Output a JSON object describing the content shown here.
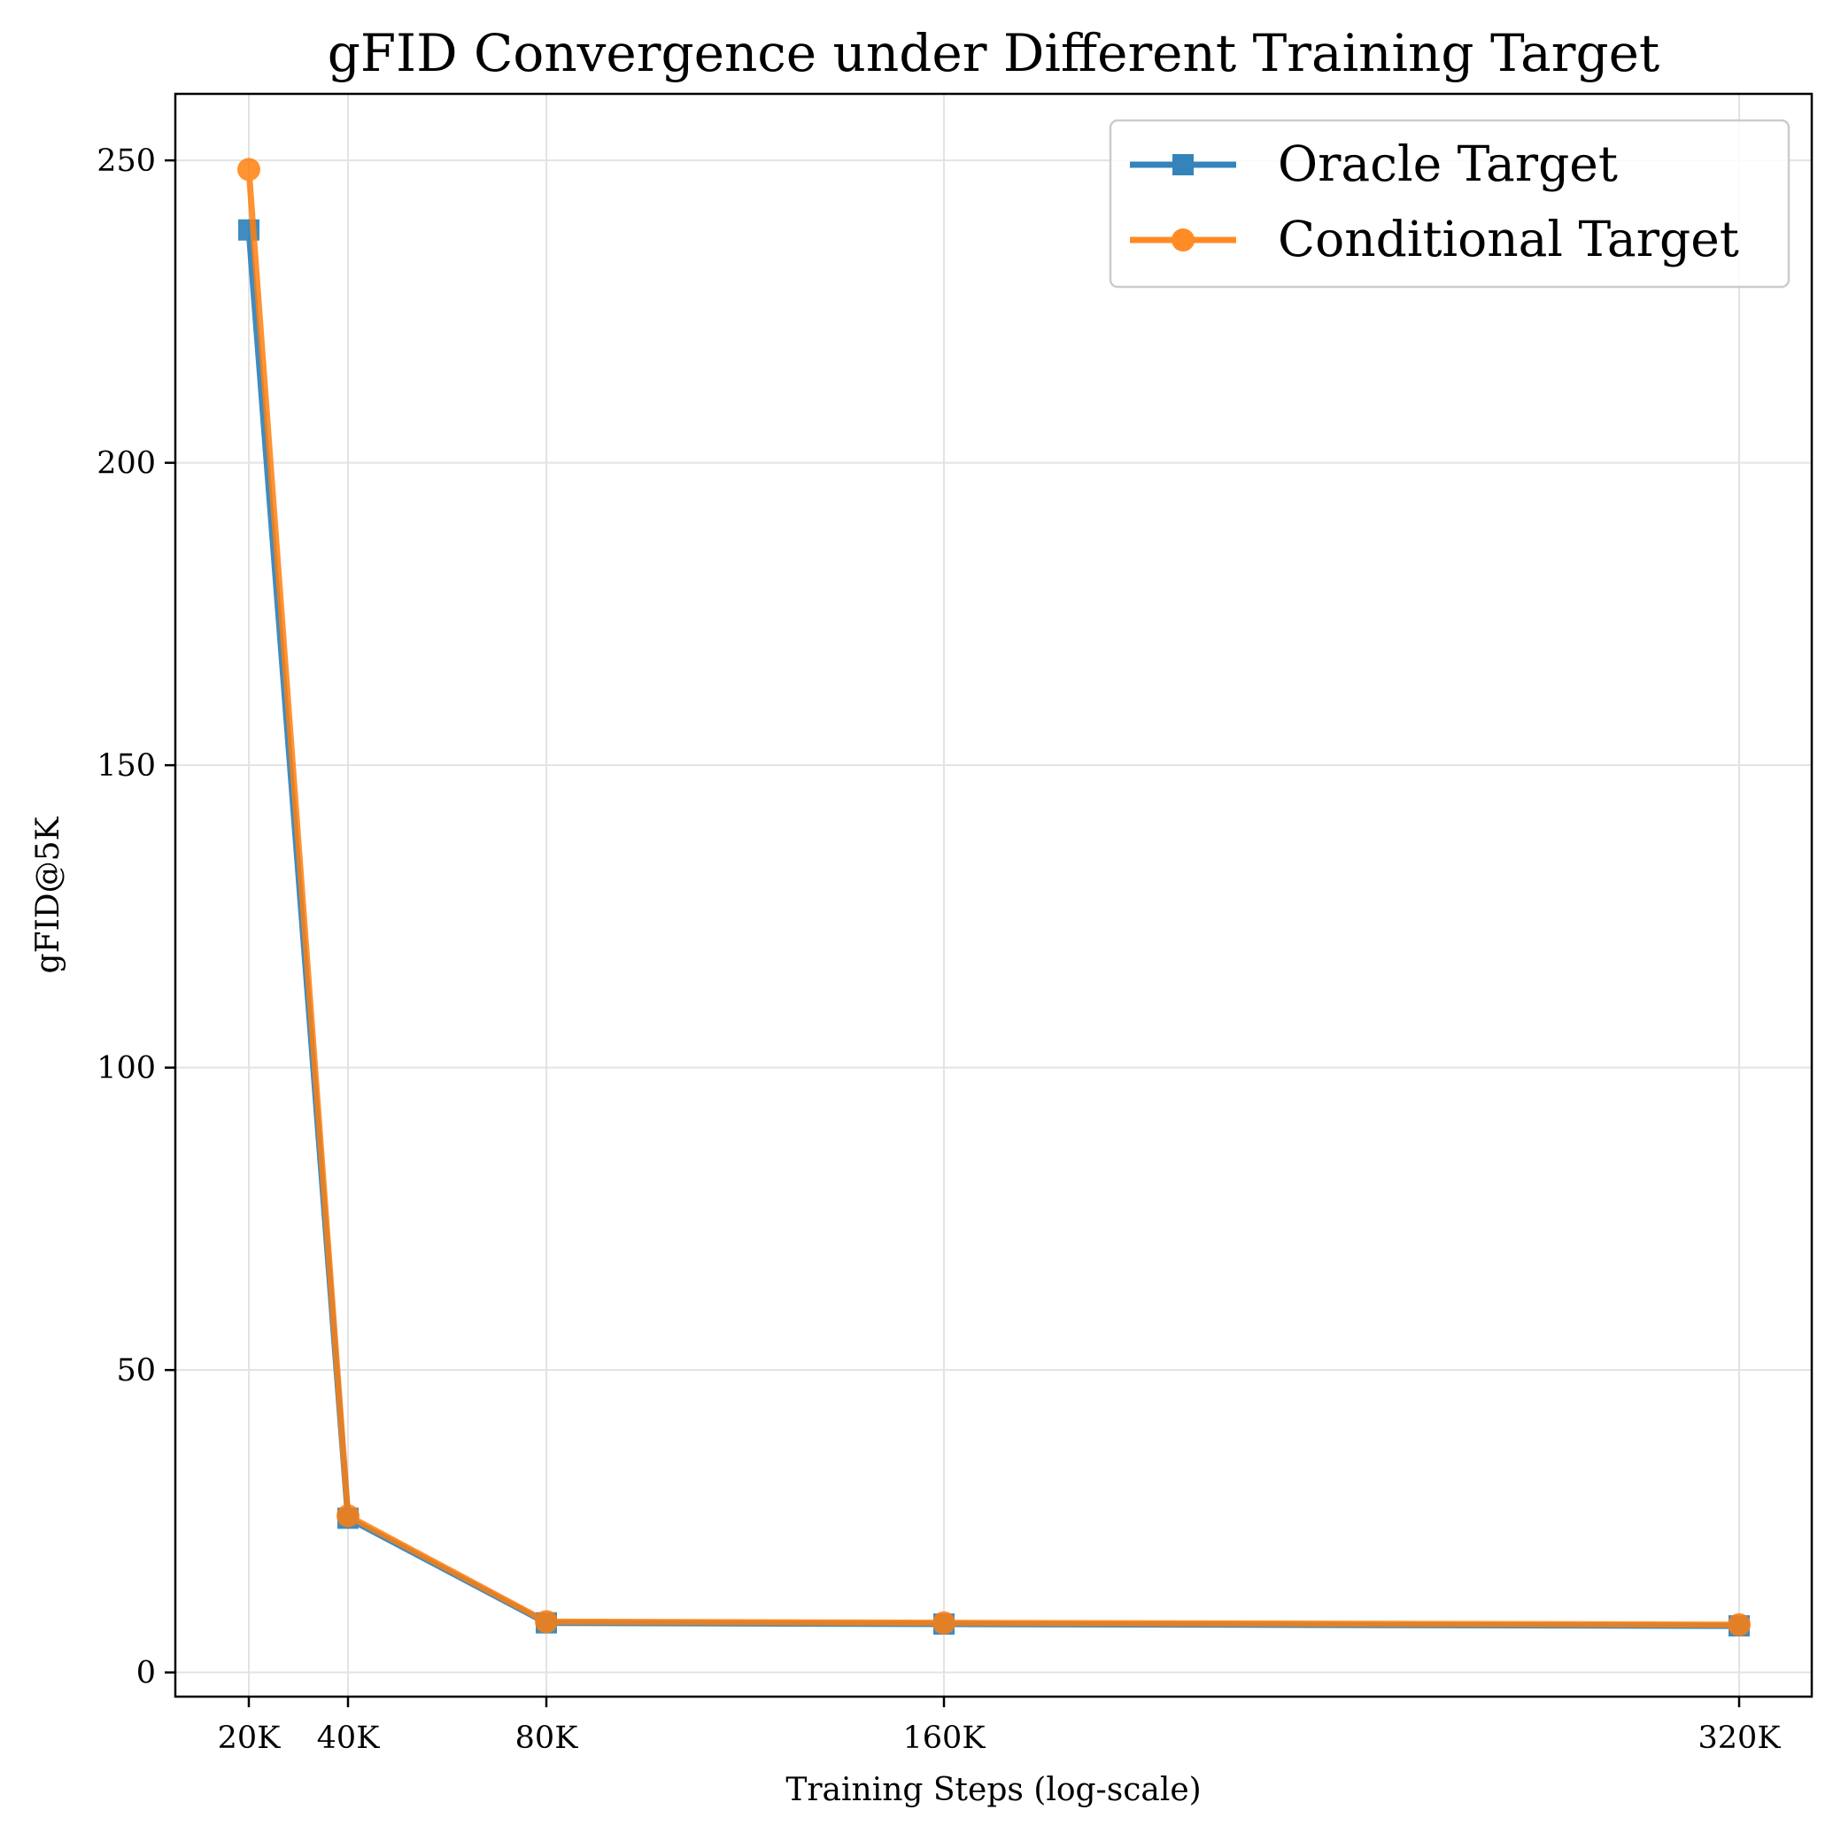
{
  "chart_data": {
    "type": "line",
    "title": "gFID Convergence under Different Training Target",
    "xlabel": "Training Steps (log-scale)",
    "ylabel": "gFID@5K",
    "x_scale": "log2",
    "x": [
      20000,
      40000,
      80000,
      160000,
      320000
    ],
    "x_tick_labels": [
      "20K",
      "40K",
      "80K",
      "160K",
      "320K"
    ],
    "y_ticks": [
      0,
      50,
      100,
      150,
      200,
      250
    ],
    "ylim": [
      -4,
      261
    ],
    "grid": true,
    "legend_position": "top-right",
    "series": [
      {
        "name": "Oracle Target",
        "color": "#1f77b4",
        "marker": "square",
        "values": [
          238.5,
          25.5,
          8.2,
          8.0,
          7.7
        ]
      },
      {
        "name": "Conditional Target",
        "color": "#ff7f0e",
        "marker": "circle",
        "values": [
          248.5,
          25.9,
          8.4,
          8.2,
          7.9
        ]
      }
    ]
  }
}
